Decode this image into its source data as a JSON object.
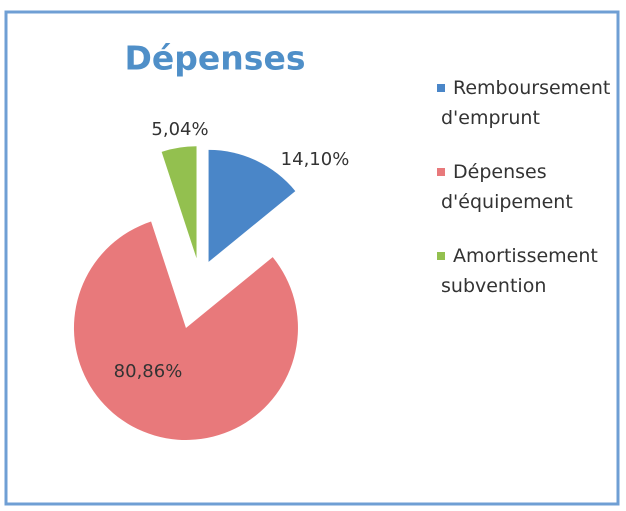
{
  "chart_data": {
    "type": "pie",
    "title": "Dépenses",
    "categories": [
      "Remboursement d'emprunt",
      "Dépenses d'équipement",
      "Amortissement subvention"
    ],
    "values": [
      14.1,
      80.86,
      5.04
    ],
    "value_labels": [
      "14,10%",
      "80,86%",
      "5,04%"
    ],
    "colors": [
      "#4a86c8",
      "#e8797b",
      "#93c04f"
    ],
    "legend": "right"
  }
}
